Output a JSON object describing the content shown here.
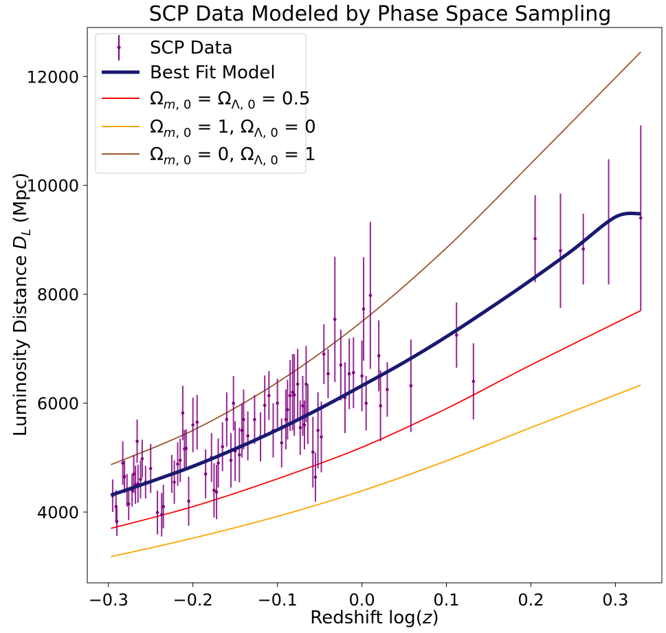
{
  "chart_data": {
    "type": "scatter",
    "title": "SCP Data Modeled by Phase Space Sampling",
    "xlabel": "Redshift log(z)",
    "ylabel": "Luminosity Distance D_L (Mpc)",
    "xlim": [
      -0.325,
      0.355
    ],
    "ylim": [
      2700,
      12900
    ],
    "x_ticks": [
      -0.3,
      -0.2,
      -0.1,
      0.0,
      0.1,
      0.2,
      0.3
    ],
    "x_tick_labels": [
      "−0.3",
      "−0.2",
      "−0.1",
      "0.0",
      "0.1",
      "0.2",
      "0.3"
    ],
    "y_ticks": [
      4000,
      6000,
      8000,
      10000,
      12000
    ],
    "y_tick_labels": [
      "4000",
      "6000",
      "8000",
      "10000",
      "12000"
    ],
    "legend_position": "top-left",
    "legend": [
      {
        "label": "SCP Data",
        "marker": "errorbar",
        "color": "#800080"
      },
      {
        "label": "Best Fit Model",
        "marker": "line-thick",
        "color": "#191970"
      },
      {
        "label": "Ωm,0 = ΩΛ,0 = 0.5",
        "marker": "line",
        "color": "#ff0000"
      },
      {
        "label": "Ωm,0 = 1, ΩΛ,0 = 0",
        "marker": "line",
        "color": "#ffa500"
      },
      {
        "label": "Ωm,0 = 0, ΩΛ,0 = 1",
        "marker": "line",
        "color": "#a0522d"
      }
    ],
    "series": [
      {
        "name": "Best Fit Model",
        "kind": "line",
        "color": "#191970",
        "x": [
          -0.297,
          -0.25,
          -0.2,
          -0.15,
          -0.1,
          -0.05,
          0.0,
          0.05,
          0.1,
          0.15,
          0.2,
          0.25,
          0.3,
          0.33
        ],
        "y": [
          4310,
          4560,
          4840,
          5160,
          5510,
          5900,
          6320,
          6750,
          7220,
          7730,
          8260,
          8820,
          9420,
          9480
        ]
      },
      {
        "name": "Ωm,0 = ΩΛ,0 = 0.5",
        "kind": "line",
        "color": "#ff0000",
        "x": [
          -0.297,
          -0.2,
          -0.1,
          0.0,
          0.1,
          0.2,
          0.33
        ],
        "y": [
          3700,
          4100,
          4610,
          5190,
          5900,
          6700,
          7700
        ]
      },
      {
        "name": "Ωm,0 = 1, ΩΛ,0 = 0",
        "kind": "line",
        "color": "#ffa500",
        "x": [
          -0.297,
          -0.2,
          -0.1,
          0.0,
          0.1,
          0.2,
          0.33
        ],
        "y": [
          3180,
          3520,
          3920,
          4390,
          4940,
          5550,
          6330
        ]
      },
      {
        "name": "Ωm,0 = 0, ΩΛ,0 = 1",
        "kind": "line",
        "color": "#a0522d",
        "x": [
          -0.297,
          -0.2,
          -0.1,
          0.0,
          0.1,
          0.2,
          0.33
        ],
        "y": [
          4870,
          5500,
          6380,
          7500,
          8850,
          10400,
          12450
        ]
      },
      {
        "name": "SCP Data",
        "kind": "errorbar",
        "color": "#800080",
        "x": [
          -0.295,
          -0.291,
          -0.29,
          -0.283,
          -0.281,
          -0.278,
          -0.276,
          -0.272,
          -0.27,
          -0.268,
          -0.266,
          -0.265,
          -0.262,
          -0.26,
          -0.256,
          -0.25,
          -0.242,
          -0.237,
          -0.235,
          -0.225,
          -0.222,
          -0.218,
          -0.215,
          -0.212,
          -0.21,
          -0.208,
          -0.205,
          -0.2,
          -0.195,
          -0.185,
          -0.178,
          -0.175,
          -0.172,
          -0.17,
          -0.165,
          -0.16,
          -0.155,
          -0.152,
          -0.15,
          -0.145,
          -0.142,
          -0.14,
          -0.135,
          -0.127,
          -0.12,
          -0.115,
          -0.11,
          -0.105,
          -0.1,
          -0.095,
          -0.09,
          -0.088,
          -0.085,
          -0.082,
          -0.08,
          -0.076,
          -0.073,
          -0.07,
          -0.068,
          -0.066,
          -0.064,
          -0.058,
          -0.055,
          -0.052,
          -0.048,
          -0.045,
          -0.04,
          -0.032,
          -0.025,
          -0.02,
          -0.015,
          -0.01,
          0.0,
          0.002,
          0.005,
          0.01,
          0.02,
          0.022,
          0.03,
          0.058,
          0.112,
          0.132,
          0.205,
          0.235,
          0.262,
          0.292,
          0.33
        ],
        "y": [
          4300,
          4100,
          3830,
          4900,
          4650,
          4400,
          4150,
          4400,
          4700,
          4500,
          5300,
          4520,
          4600,
          4980,
          4550,
          4800,
          3990,
          3950,
          4100,
          4700,
          4550,
          4880,
          4950,
          5820,
          5160,
          5170,
          4200,
          5600,
          5650,
          4700,
          5000,
          4400,
          4370,
          4900,
          5200,
          5700,
          4950,
          6000,
          5120,
          5050,
          5500,
          5700,
          5400,
          5700,
          5380,
          5960,
          6140,
          5500,
          6000,
          5270,
          5700,
          5880,
          6140,
          6200,
          6150,
          6350,
          5550,
          5950,
          5600,
          6350,
          5800,
          5100,
          4640,
          5500,
          5380,
          6900,
          6540,
          7540,
          6700,
          6100,
          6540,
          6560,
          6500,
          7730,
          6000,
          7980,
          6870,
          5950,
          6250,
          6320,
          7250,
          6400,
          9020,
          8800,
          8830,
          9330,
          9400
        ],
        "err": [
          300,
          300,
          270,
          400,
          300,
          300,
          300,
          300,
          350,
          350,
          400,
          350,
          350,
          350,
          300,
          450,
          400,
          400,
          400,
          350,
          400,
          400,
          400,
          500,
          350,
          350,
          450,
          500,
          500,
          450,
          450,
          500,
          500,
          450,
          450,
          500,
          500,
          500,
          550,
          500,
          500,
          550,
          450,
          450,
          450,
          550,
          450,
          500,
          450,
          450,
          550,
          550,
          650,
          700,
          750,
          650,
          500,
          550,
          450,
          700,
          550,
          650,
          450,
          700,
          650,
          550,
          450,
          1150,
          650,
          650,
          650,
          650,
          650,
          950,
          500,
          1350,
          650,
          650,
          500,
          850,
          600,
          700,
          800,
          1050,
          650,
          1150,
          1700
        ]
      }
    ]
  }
}
